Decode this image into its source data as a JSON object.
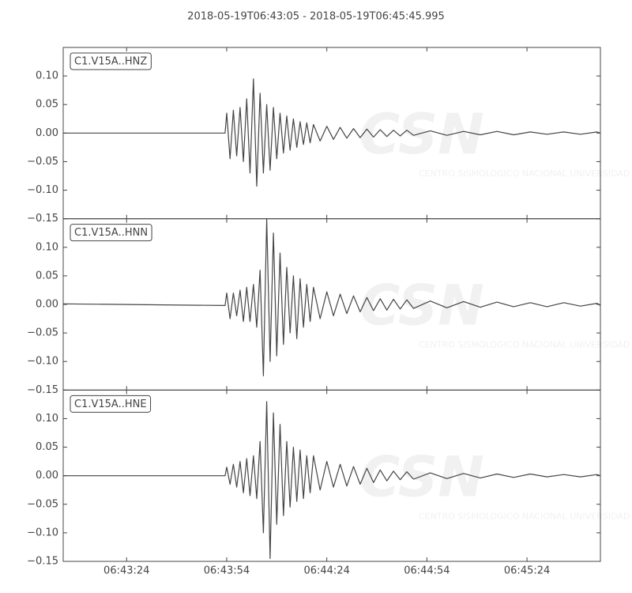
{
  "chart_data": {
    "type": "line",
    "title": "2018-05-19T06:43:05  -  2018-05-19T06:45:45.995",
    "watermark": "CSN",
    "watermark_subtitle": "CENTRO SISMOLOGICO NACIONAL UNIVERSIDAD DE CHILE",
    "x": [
      "06:43:05",
      "06:43:53.5",
      "06:43:54",
      "06:43:55",
      "06:43:56",
      "06:43:57",
      "06:43:58",
      "06:43:59",
      "06:44:00",
      "06:44:01",
      "06:44:02",
      "06:44:03",
      "06:44:04",
      "06:44:05",
      "06:44:06",
      "06:44:07",
      "06:44:08",
      "06:44:09",
      "06:44:10",
      "06:44:11",
      "06:44:12",
      "06:44:13",
      "06:44:14",
      "06:44:15",
      "06:44:16",
      "06:44:17",
      "06:44:18",
      "06:44:19",
      "06:44:20",
      "06:44:22",
      "06:44:24",
      "06:44:26",
      "06:44:28",
      "06:44:30",
      "06:44:32",
      "06:44:34",
      "06:44:36",
      "06:44:38",
      "06:44:40",
      "06:44:42",
      "06:44:44",
      "06:44:46",
      "06:44:48",
      "06:44:50",
      "06:44:55",
      "06:45:00",
      "06:45:05",
      "06:45:10",
      "06:45:15",
      "06:45:20",
      "06:45:25",
      "06:45:30",
      "06:45:35",
      "06:45:40",
      "06:45:45",
      "06:45:45.995"
    ],
    "xlim": [
      "06:43:05",
      "06:45:45.995"
    ],
    "xticks": [
      "06:43:24",
      "06:43:54",
      "06:44:24",
      "06:44:54",
      "06:45:24"
    ],
    "ylim": [
      -0.15,
      0.15
    ],
    "yticks": [
      {
        "value": -0.15,
        "label": "−0.15"
      },
      {
        "value": -0.1,
        "label": "−0.10"
      },
      {
        "value": -0.05,
        "label": "−0.05"
      },
      {
        "value": 0,
        "label": "0.00"
      },
      {
        "value": 0.05,
        "label": "0.05"
      },
      {
        "value": 0.1,
        "label": "0.10"
      }
    ],
    "series": [
      {
        "name": "C1.V15A..HNZ",
        "color": "#444444",
        "values": [
          0,
          0,
          0.035,
          -0.045,
          0.04,
          -0.04,
          0.045,
          -0.05,
          0.06,
          -0.07,
          0.095,
          -0.093,
          0.07,
          -0.07,
          0.05,
          -0.065,
          0.045,
          -0.045,
          0.035,
          -0.035,
          0.03,
          -0.03,
          0.025,
          -0.025,
          0.02,
          -0.02,
          0.018,
          -0.017,
          0.015,
          -0.014,
          0.012,
          -0.011,
          0.01,
          -0.009,
          0.008,
          -0.008,
          0.007,
          -0.007,
          0.006,
          -0.006,
          0.005,
          -0.005,
          0.005,
          -0.004,
          0.004,
          -0.004,
          0.003,
          -0.003,
          0.003,
          -0.003,
          0.002,
          -0.002,
          0.002,
          -0.002,
          0.002,
          0
        ]
      },
      {
        "name": "C1.V15A..HNN",
        "color": "#444444",
        "values": [
          0.001,
          -0.002,
          0.02,
          -0.025,
          0.02,
          -0.02,
          0.025,
          -0.03,
          0.03,
          -0.03,
          0.035,
          -0.04,
          0.06,
          -0.125,
          0.15,
          -0.1,
          0.125,
          -0.09,
          0.09,
          -0.07,
          0.065,
          -0.05,
          0.05,
          -0.06,
          0.045,
          -0.04,
          0.035,
          -0.03,
          0.03,
          -0.025,
          0.022,
          -0.02,
          0.018,
          -0.016,
          0.015,
          -0.013,
          0.012,
          -0.011,
          0.01,
          -0.01,
          0.009,
          -0.008,
          0.008,
          -0.007,
          0.006,
          -0.006,
          0.005,
          -0.005,
          0.004,
          -0.004,
          0.003,
          -0.004,
          0.003,
          -0.003,
          0.002,
          -0.002
        ]
      },
      {
        "name": "C1.V15A..HNE",
        "color": "#444444",
        "values": [
          0,
          0,
          0.015,
          -0.015,
          0.02,
          -0.02,
          0.025,
          -0.03,
          0.03,
          -0.035,
          0.035,
          -0.04,
          0.06,
          -0.1,
          0.13,
          -0.145,
          0.11,
          -0.085,
          0.09,
          -0.07,
          0.06,
          -0.055,
          0.05,
          -0.045,
          0.045,
          -0.04,
          0.035,
          -0.03,
          0.035,
          -0.025,
          0.025,
          -0.02,
          0.02,
          -0.018,
          0.016,
          -0.015,
          0.013,
          -0.012,
          0.01,
          -0.009,
          0.008,
          -0.007,
          0.007,
          -0.006,
          0.005,
          -0.005,
          0.004,
          -0.004,
          0.003,
          -0.003,
          0.003,
          -0.002,
          0.002,
          -0.002,
          0.002,
          0
        ]
      }
    ]
  }
}
